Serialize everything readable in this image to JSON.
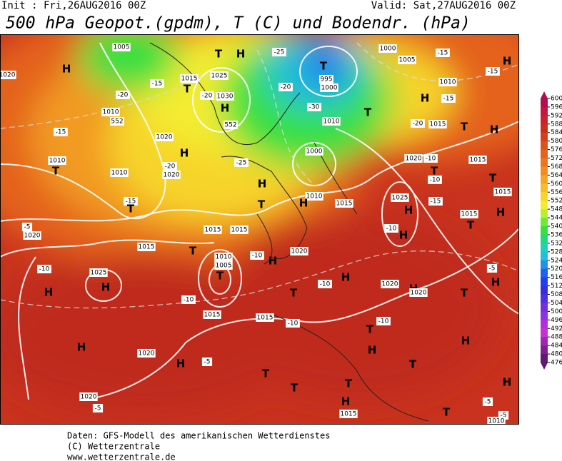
{
  "header": {
    "init": "Init : Fri,26AUG2016 00Z",
    "valid": "Valid: Sat,27AUG2016 00Z",
    "title": "500 hPa Geopot.(gpdm), T (C) und Bodendr. (hPa)"
  },
  "legend": {
    "ticks": [
      600,
      596,
      592,
      588,
      584,
      580,
      576,
      572,
      568,
      564,
      560,
      556,
      552,
      548,
      544,
      540,
      536,
      532,
      528,
      524,
      520,
      516,
      512,
      508,
      504,
      500,
      496,
      492,
      488,
      484,
      480,
      476
    ],
    "colors": [
      "#b0104e",
      "#c41640",
      "#cc2030",
      "#c8301e",
      "#d2401c",
      "#dc521c",
      "#e4621c",
      "#ec761e",
      "#f28c20",
      "#f6a424",
      "#f8bc28",
      "#f8d42c",
      "#f4ec30",
      "#b8f030",
      "#70e838",
      "#38e040",
      "#20d880",
      "#20d0b8",
      "#20c0d8",
      "#2090e8",
      "#2060f0",
      "#2040f0",
      "#3030e0",
      "#5030e0",
      "#7030e0",
      "#9030e0",
      "#b030e0",
      "#c830d0",
      "#a028b0",
      "#802090",
      "#601870"
    ]
  },
  "map": {
    "labels": [
      "H",
      "1020",
      "T",
      "H",
      "T",
      "1005",
      "1015",
      "1025",
      "1030",
      "H",
      "-20",
      "-15",
      "-20",
      "1010",
      "552",
      "552",
      "1020",
      "H",
      "-20",
      "1020",
      "T",
      "1010",
      "-15",
      "1010",
      "-15",
      "T",
      "-25",
      "H",
      "T",
      "1015",
      "1015",
      "1015",
      "T",
      "1010",
      "1005",
      "T",
      "1025",
      "H",
      "-10",
      "H",
      "-5",
      "1020",
      "-10",
      "1015",
      "1015",
      "-10",
      "1020",
      "H",
      "-5",
      "H",
      "T",
      "1020",
      "-5",
      "1015",
      "H",
      "T",
      "T",
      "H",
      "-10",
      "T",
      "H",
      "1020",
      "1020",
      "T",
      "H",
      "-10",
      "T",
      "1020",
      "H",
      "-10",
      "1015",
      "1010",
      "H",
      "1000",
      "995",
      "1000",
      "T",
      "-25",
      "-30",
      "-20",
      "1010",
      "T",
      "1000",
      "1005",
      "-15",
      "H",
      "-15",
      "1010",
      "H",
      "-15",
      "1015",
      "-20",
      "T",
      "H",
      "1020",
      "-10",
      "T",
      "1015",
      "T",
      "-10",
      "1015",
      "1025",
      "H",
      "-10",
      "H",
      "-15",
      "1015",
      "T",
      "H",
      "T",
      "-5",
      "H",
      "H",
      "H",
      "T",
      "-5",
      "-5",
      "1010"
    ]
  },
  "footer": [
    "Daten: GFS-Modell des amerikanischen Wetterdienstes",
    "(C) Wetterzentrale",
    "www.wetterzentrale.de"
  ]
}
